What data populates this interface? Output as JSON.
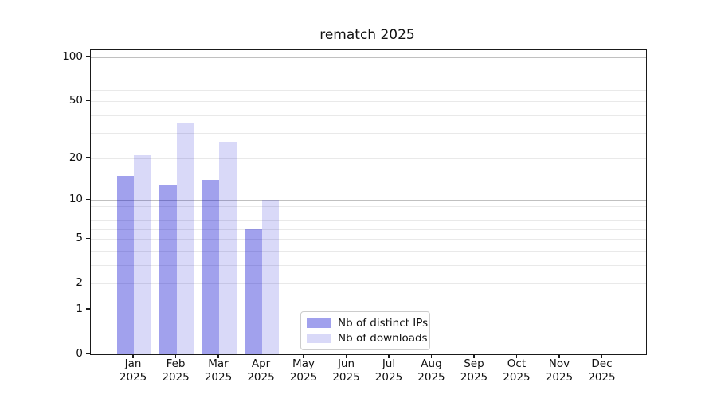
{
  "chart_data": {
    "type": "bar",
    "title": "rematch 2025",
    "categories": [
      "Jan",
      "Feb",
      "Mar",
      "Apr",
      "May",
      "Jun",
      "Jul",
      "Aug",
      "Sep",
      "Oct",
      "Nov",
      "Dec"
    ],
    "category_year": "2025",
    "series": [
      {
        "name": "Nb of distinct IPs",
        "color": "rgba(0,0,205,0.37)",
        "values": [
          15,
          13,
          14,
          6,
          0,
          0,
          0,
          0,
          0,
          0,
          0,
          0
        ]
      },
      {
        "name": "Nb of downloads",
        "color": "rgba(0,0,205,0.15)",
        "values": [
          21,
          35,
          26,
          10,
          0,
          0,
          0,
          0,
          0,
          0,
          0,
          0
        ]
      }
    ],
    "yaxis": {
      "scale": "log1p",
      "tick_labels": [
        0,
        1,
        2,
        5,
        10,
        20,
        50,
        100
      ],
      "major_gridlines": [
        1,
        10,
        100
      ],
      "minor_gridlines": [
        2,
        3,
        4,
        5,
        6,
        7,
        8,
        9,
        20,
        30,
        40,
        50,
        60,
        70,
        80,
        90
      ],
      "ylim": [
        0,
        112
      ]
    },
    "legend": {
      "position": "lower center"
    },
    "grid": true
  }
}
